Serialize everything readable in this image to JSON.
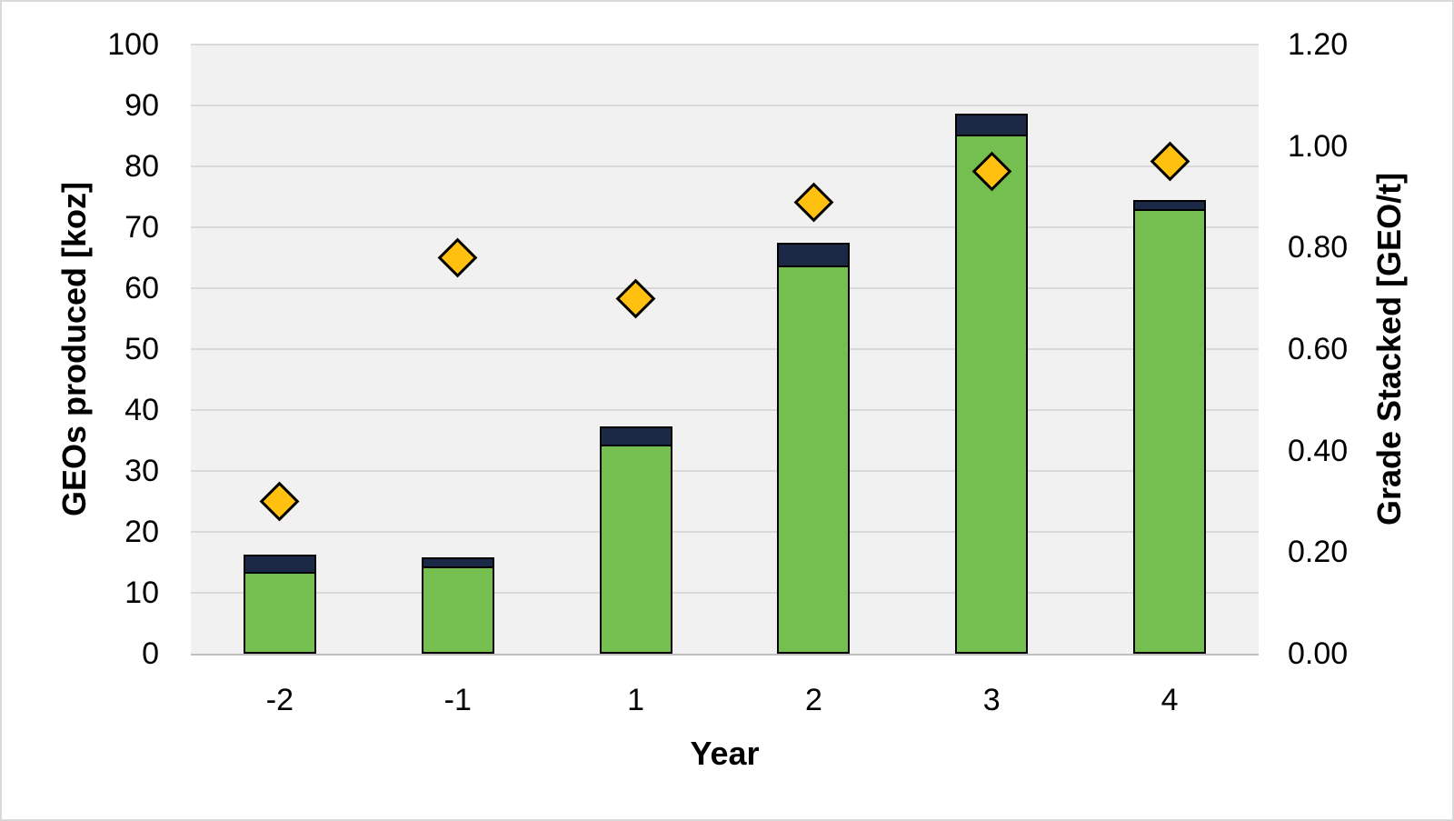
{
  "figure": {
    "background": "#ffffff",
    "outer_border_color": "#d9d9d9",
    "plot_background": "#f1f1f1",
    "gridline_color": "#d9d9d9",
    "axis_line_color": "#bfbfbf"
  },
  "chart_data": {
    "type": "combo",
    "title": "",
    "legend": "none",
    "grid": "horizontal",
    "x": {
      "label": "Year",
      "categories": [
        "-2",
        "-1",
        "1",
        "2",
        "3",
        "4"
      ]
    },
    "axes": {
      "left": {
        "label": "GEOs produced [koz]",
        "min": 0,
        "max": 100,
        "tick_step": 10,
        "ticks": [
          "100",
          "90",
          "80",
          "70",
          "60",
          "50",
          "40",
          "30",
          "20",
          "10",
          "0"
        ]
      },
      "right": {
        "label": "Grade Stacked [GEO/t]",
        "min": 0.0,
        "max": 1.2,
        "tick_step": 0.2,
        "ticks": [
          "1.20",
          "1.00",
          "0.80",
          "0.60",
          "0.40",
          "0.20",
          "0.00"
        ]
      }
    },
    "series": [
      {
        "name": "geos-produced-green-segment",
        "type": "bar",
        "stack": "geos",
        "axis": "left",
        "color": "#75BF50",
        "border_color": "#000000",
        "values": [
          13.5,
          14.3,
          34.3,
          63.7,
          85.2,
          73.0
        ]
      },
      {
        "name": "geos-produced-navy-top-segment",
        "type": "bar",
        "stack": "geos",
        "axis": "left",
        "color": "#1B2947",
        "border_color": "#000000",
        "values": [
          2.7,
          1.5,
          3.0,
          3.7,
          3.5,
          1.5
        ]
      },
      {
        "name": "grade-stacked",
        "type": "scatter",
        "marker": "diamond",
        "axis": "right",
        "color": "#FFC010",
        "border_color": "#000000",
        "values": [
          0.3,
          0.78,
          0.7,
          0.89,
          0.95,
          0.97
        ]
      }
    ]
  }
}
